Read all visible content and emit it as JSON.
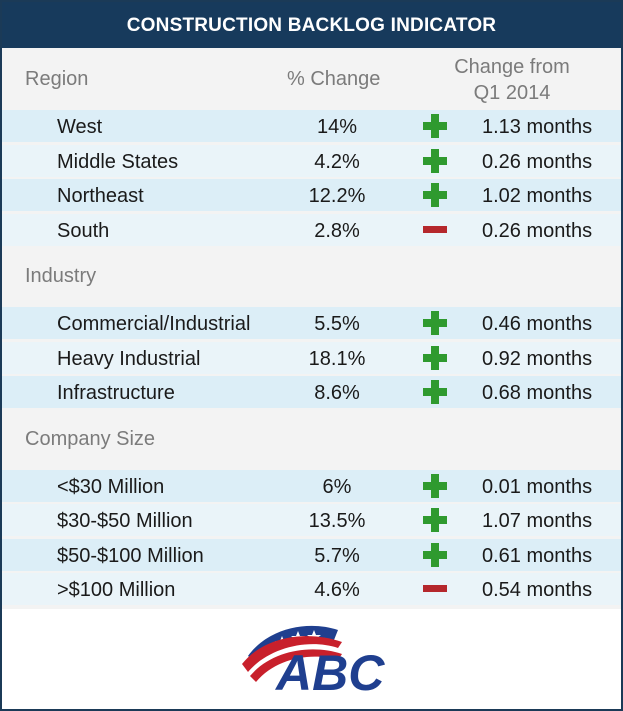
{
  "title": "CONSTRUCTION BACKLOG INDICATOR",
  "headers": {
    "region": "Region",
    "pct_change": "% Change",
    "change_from_line1": "Change from",
    "change_from_line2": "Q1 2014"
  },
  "colors": {
    "title_bg": "#173a5c",
    "increase": "#2f9a2f",
    "decrease": "#b5272c",
    "row_shade": "#dceef7"
  },
  "chart_data": {
    "type": "table",
    "title": "CONSTRUCTION BACKLOG INDICATOR",
    "columns": [
      "Region",
      "% Change",
      "Change from Q1 2014"
    ],
    "sections": [
      {
        "label": "",
        "rows": [
          {
            "name": "West",
            "pct": "14%",
            "direction": "up",
            "months": "1.13 months"
          },
          {
            "name": "Middle States",
            "pct": "4.2%",
            "direction": "up",
            "months": "0.26 months"
          },
          {
            "name": "Northeast",
            "pct": "12.2%",
            "direction": "up",
            "months": "1.02 months"
          },
          {
            "name": "South",
            "pct": "2.8%",
            "direction": "down",
            "months": "0.26 months"
          }
        ]
      },
      {
        "label": "Industry",
        "rows": [
          {
            "name": "Commercial/Industrial",
            "pct": "5.5%",
            "direction": "up",
            "months": "0.46 months"
          },
          {
            "name": "Heavy Industrial",
            "pct": "18.1%",
            "direction": "up",
            "months": "0.92 months"
          },
          {
            "name": "Infrastructure",
            "pct": "8.6%",
            "direction": "up",
            "months": "0.68 months"
          }
        ]
      },
      {
        "label": "Company  Size",
        "rows": [
          {
            "name": "<$30 Million",
            "pct": "6%",
            "direction": "up",
            "months": "0.01 months"
          },
          {
            "name": "$30-$50 Million",
            "pct": "13.5%",
            "direction": "up",
            "months": "1.07 months"
          },
          {
            "name": "$50-$100 Million",
            "pct": "5.7%",
            "direction": "up",
            "months": "0.61 months"
          },
          {
            "name": ">$100 Million",
            "pct": "4.6%",
            "direction": "down",
            "months": "0.54 months"
          }
        ]
      }
    ]
  },
  "logo": {
    "text": "ABC",
    "icon": "abc-flag-logo"
  }
}
